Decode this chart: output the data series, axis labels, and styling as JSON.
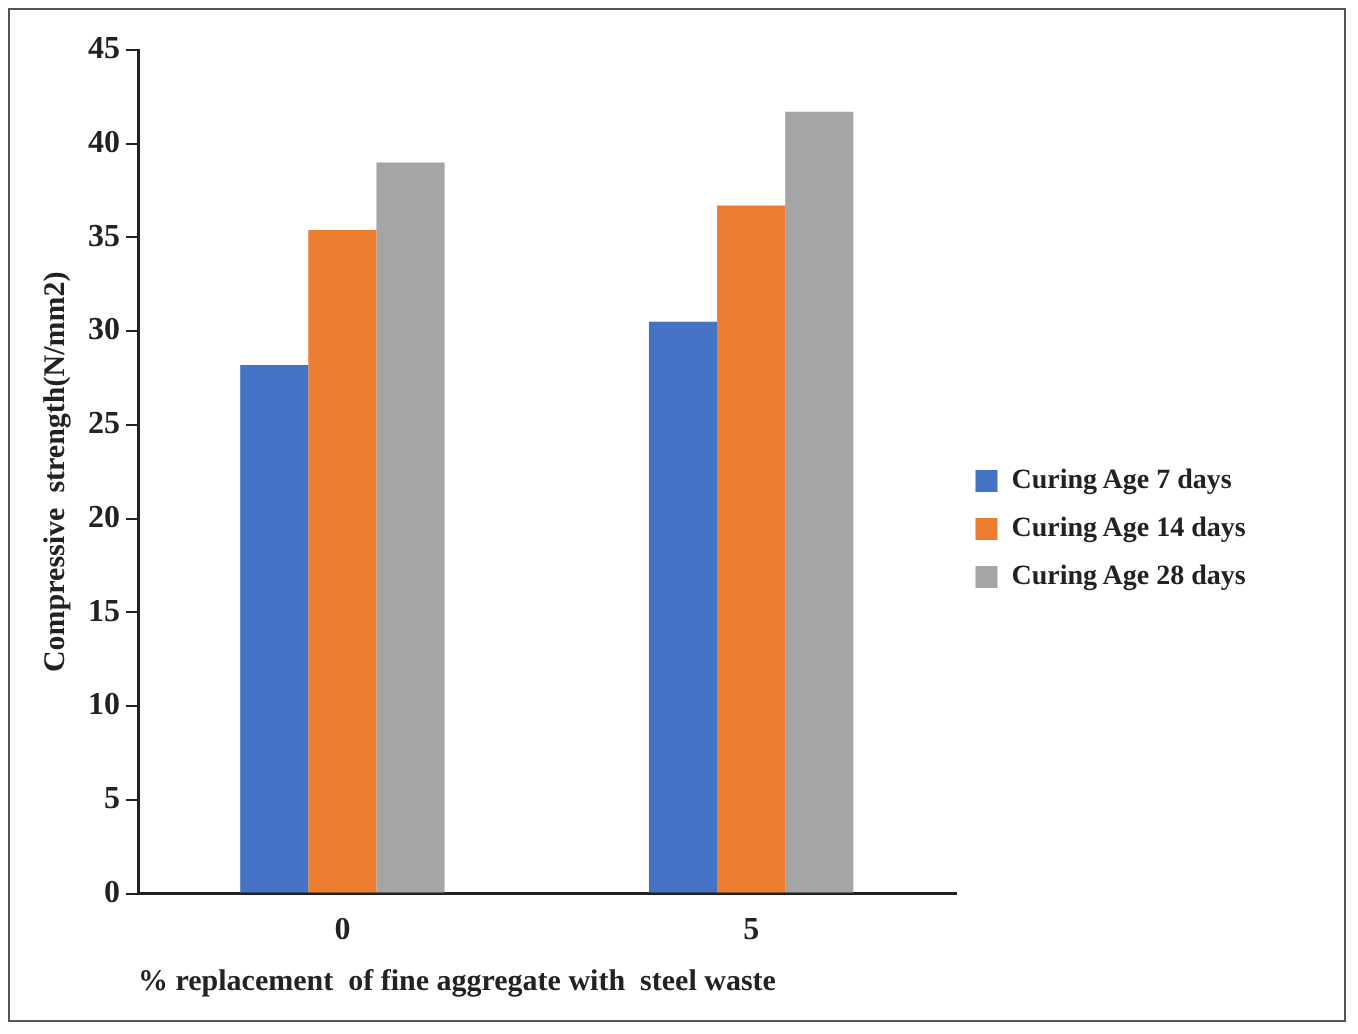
{
  "chart_data": {
    "type": "bar",
    "xlabel": "% replacement  of fine aggregate with  steel waste",
    "ylabel": "Compressive  strength(N/mm2)",
    "categories": [
      "0",
      "5"
    ],
    "series": [
      {
        "name": "Curing Age 7 days",
        "color": "#4472c4",
        "values": [
          28.2,
          30.5
        ]
      },
      {
        "name": "Curing Age 14 days",
        "color": "#ed7d31",
        "values": [
          35.4,
          36.7
        ]
      },
      {
        "name": "Curing Age 28 days",
        "color": "#a5a5a5",
        "values": [
          39.0,
          41.7
        ]
      }
    ],
    "ylim": [
      0,
      45
    ],
    "yticks": [
      0,
      5,
      10,
      15,
      20,
      25,
      30,
      35,
      40,
      45
    ],
    "grid": false,
    "legend": "right"
  }
}
